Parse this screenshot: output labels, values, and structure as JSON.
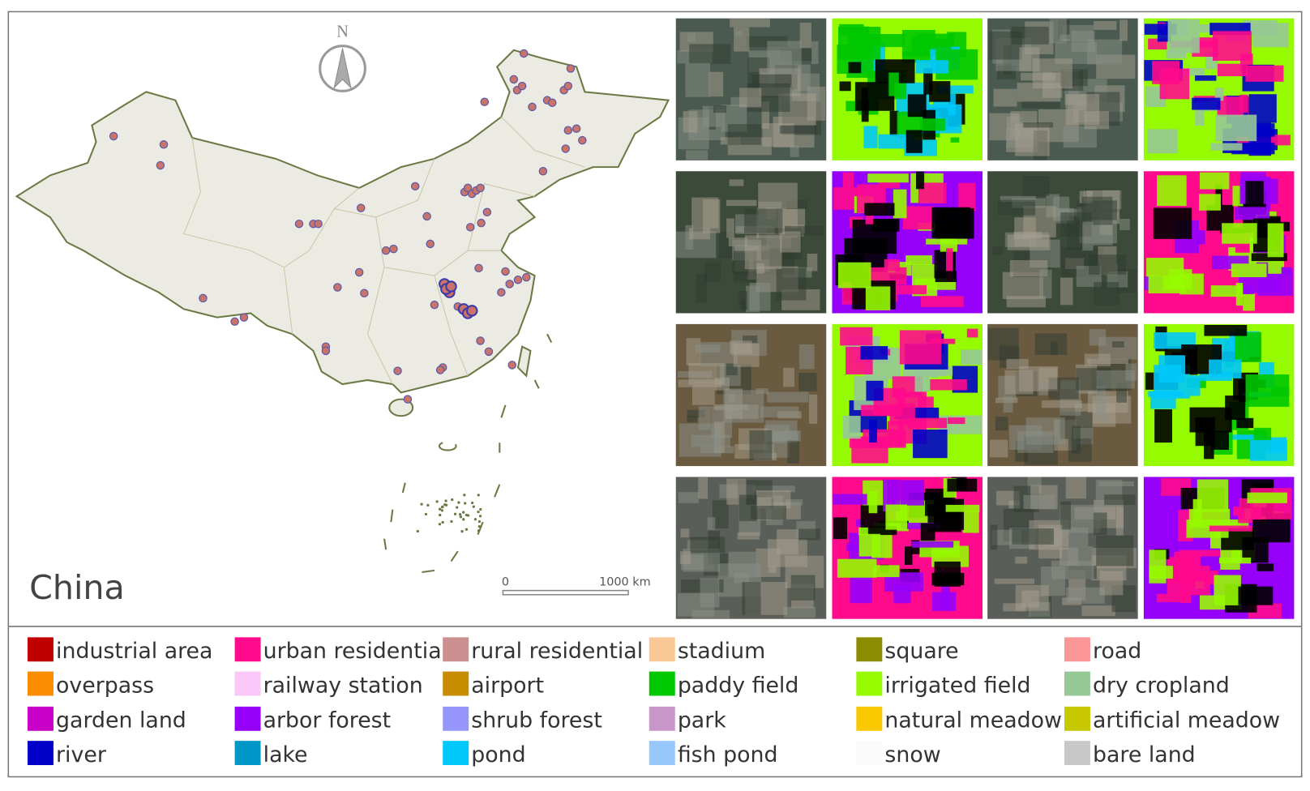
{
  "map": {
    "label": "China",
    "north": "N",
    "scale_start": "0",
    "scale_end": "1000 km"
  },
  "legend": [
    {
      "name": "industrial area",
      "color": "#c00000"
    },
    {
      "name": "urban residential",
      "color": "#ff0a8c"
    },
    {
      "name": "rural residential",
      "color": "#cc9090"
    },
    {
      "name": "stadium",
      "color": "#fac896"
    },
    {
      "name": "square",
      "color": "#8c8c00"
    },
    {
      "name": "road",
      "color": "#fa9696"
    },
    {
      "name": "overpass",
      "color": "#fa8c00"
    },
    {
      "name": "railway station",
      "color": "#fac8f8"
    },
    {
      "name": "airport",
      "color": "#c88c00"
    },
    {
      "name": "paddy field",
      "color": "#00c800"
    },
    {
      "name": "irrigated field",
      "color": "#96fa00"
    },
    {
      "name": "dry cropland",
      "color": "#96c896"
    },
    {
      "name": "garden land",
      "color": "#c800c8"
    },
    {
      "name": "arbor forest",
      "color": "#9600fa"
    },
    {
      "name": "shrub forest",
      "color": "#9696fa"
    },
    {
      "name": "park",
      "color": "#c896c8"
    },
    {
      "name": "natural meadow",
      "color": "#fac800"
    },
    {
      "name": "artificial meadow",
      "color": "#c8c800"
    },
    {
      "name": "river",
      "color": "#0000c8"
    },
    {
      "name": "lake",
      "color": "#0096c8"
    },
    {
      "name": "pond",
      "color": "#00c8fa"
    },
    {
      "name": "fish pond",
      "color": "#96c8fa"
    },
    {
      "name": "snow",
      "color": "#fafafa"
    },
    {
      "name": "bare land",
      "color": "#c8c8c8"
    }
  ]
}
